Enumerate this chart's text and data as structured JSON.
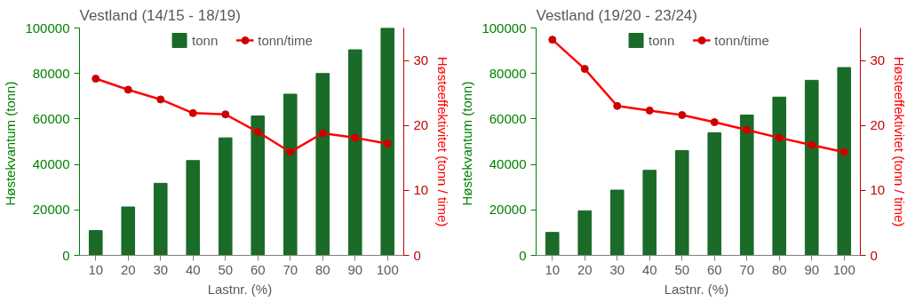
{
  "chart_data": [
    {
      "type": "bar",
      "title": "Vestland (14/15 - 18/19)",
      "categories": [
        "10",
        "20",
        "30",
        "40",
        "50",
        "60",
        "70",
        "80",
        "90",
        "100"
      ],
      "xlabel": "Lastnr.  (%)",
      "ylabel": "Høstekvantum  (tonn)",
      "y2label": "Høsteeffektivitet (tonn / time)",
      "ylim": [
        0,
        100000
      ],
      "yticks": [
        0,
        20000,
        40000,
        60000,
        80000,
        100000
      ],
      "y2lim": [
        0,
        35
      ],
      "y2ticks": [
        0,
        10,
        20,
        30
      ],
      "legend": "top",
      "marker": "circle",
      "series": [
        {
          "name": "tonn",
          "type": "bar",
          "color": "#1a6b28",
          "values": [
            10900,
            21300,
            31700,
            41700,
            51700,
            61300,
            70900,
            80000,
            90400,
            100000
          ]
        },
        {
          "name": "tonn/time",
          "type": "line",
          "axis": "y2",
          "color": "#ff0000",
          "values": [
            27.2,
            25.5,
            24.0,
            21.9,
            21.7,
            19.0,
            15.9,
            18.8,
            18.1,
            17.2
          ]
        }
      ]
    },
    {
      "type": "bar",
      "title": "Vestland (19/20 - 23/24)",
      "categories": [
        "10",
        "20",
        "30",
        "40",
        "50",
        "60",
        "70",
        "80",
        "90",
        "100"
      ],
      "xlabel": "Lastnr.  (%)",
      "ylabel": "Høstekvantum  (tonn)",
      "y2label": "Høsteeffektivitet (tonn / time)",
      "ylim": [
        0,
        100000
      ],
      "yticks": [
        0,
        20000,
        40000,
        60000,
        80000,
        100000
      ],
      "y2lim": [
        0,
        35
      ],
      "y2ticks": [
        0,
        10,
        20,
        30
      ],
      "legend": "top",
      "marker": "circle",
      "series": [
        {
          "name": "tonn",
          "type": "bar",
          "color": "#1a6b28",
          "values": [
            10100,
            19600,
            28700,
            37400,
            46100,
            53900,
            61700,
            69600,
            77000,
            82600
          ]
        },
        {
          "name": "tonn/time",
          "type": "line",
          "axis": "y2",
          "color": "#ff0000",
          "values": [
            33.2,
            28.7,
            23.0,
            22.3,
            21.6,
            20.5,
            19.3,
            18.1,
            17.0,
            15.9
          ]
        }
      ]
    }
  ]
}
